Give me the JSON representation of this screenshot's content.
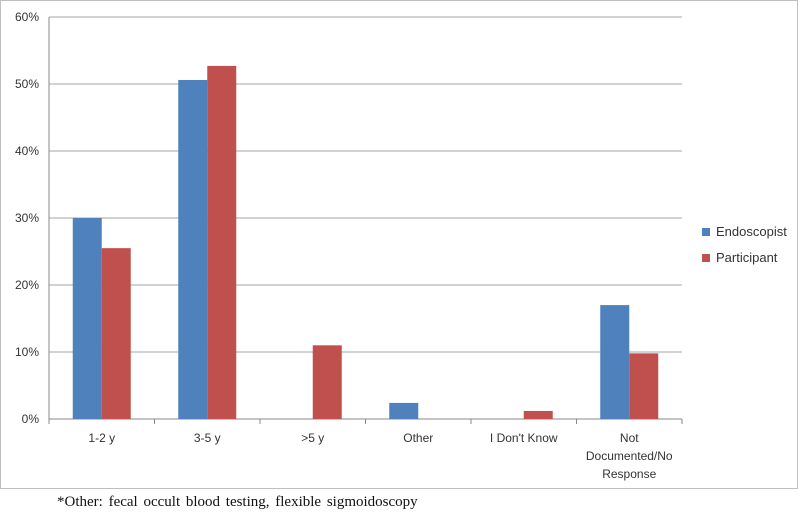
{
  "chart_data": {
    "type": "bar",
    "categories": [
      [
        "1-2 y"
      ],
      [
        "3-5 y"
      ],
      [
        ">5 y"
      ],
      [
        "Other"
      ],
      [
        "I Don't Know"
      ],
      [
        "Not",
        "Documented/No",
        "Response"
      ]
    ],
    "series": [
      {
        "name": "Endoscopist",
        "color": "#4f81bd",
        "values": [
          30.0,
          50.6,
          0,
          2.4,
          0,
          17.0
        ]
      },
      {
        "name": "Participant",
        "color": "#c0504d",
        "values": [
          25.5,
          52.7,
          11.0,
          0,
          1.2,
          9.8
        ]
      }
    ],
    "ylim": [
      0,
      60
    ],
    "yticks": [
      "0%",
      "10%",
      "20%",
      "30%",
      "40%",
      "50%",
      "60%"
    ],
    "grid": true,
    "legend_position": "right",
    "title": "",
    "xlabel": "",
    "ylabel": ""
  },
  "footnote": "*Other: fecal occult blood testing, flexible sigmoidoscopy"
}
